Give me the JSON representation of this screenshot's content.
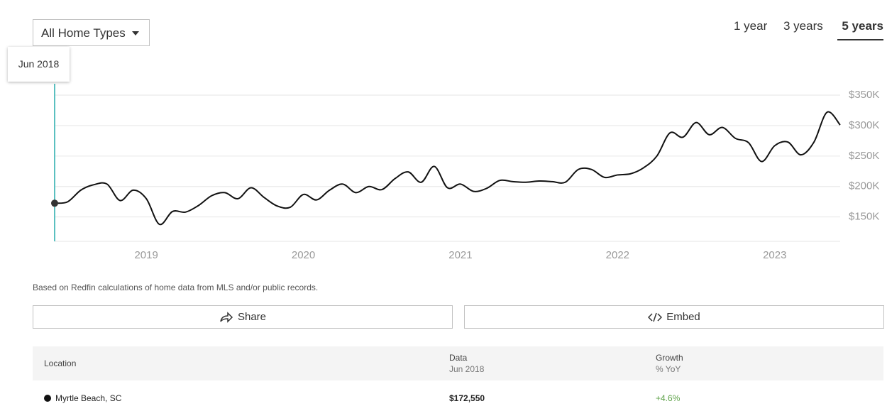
{
  "filter": {
    "label": "All Home Types"
  },
  "time_range": {
    "options": [
      "1 year",
      "3 years",
      "5 years"
    ],
    "selected": "5 years"
  },
  "tooltip": {
    "label": "Jun 2018"
  },
  "chart_data": {
    "type": "line",
    "color": "#111111",
    "grid": true,
    "x": [
      "2018-06",
      "2018-07",
      "2018-08",
      "2018-09",
      "2018-10",
      "2018-11",
      "2018-12",
      "2019-01",
      "2019-02",
      "2019-03",
      "2019-04",
      "2019-05",
      "2019-06",
      "2019-07",
      "2019-08",
      "2019-09",
      "2019-10",
      "2019-11",
      "2019-12",
      "2020-01",
      "2020-02",
      "2020-03",
      "2020-04",
      "2020-05",
      "2020-06",
      "2020-07",
      "2020-08",
      "2020-09",
      "2020-10",
      "2020-11",
      "2020-12",
      "2021-01",
      "2021-02",
      "2021-03",
      "2021-04",
      "2021-05",
      "2021-06",
      "2021-07",
      "2021-08",
      "2021-09",
      "2021-10",
      "2021-11",
      "2021-12",
      "2022-01",
      "2022-02",
      "2022-03",
      "2022-04",
      "2022-05",
      "2022-06",
      "2022-07",
      "2022-08",
      "2022-09",
      "2022-10",
      "2022-11",
      "2022-12",
      "2023-01",
      "2023-02",
      "2023-03",
      "2023-04",
      "2023-05",
      "2023-06"
    ],
    "values": [
      172550,
      175000,
      194000,
      203000,
      204000,
      177000,
      194000,
      180000,
      138000,
      159000,
      158000,
      169000,
      185000,
      190000,
      180000,
      198000,
      182000,
      168000,
      166000,
      187000,
      178000,
      194000,
      204000,
      190000,
      200000,
      195000,
      213000,
      224000,
      207000,
      233000,
      198000,
      204000,
      192000,
      197000,
      210000,
      208000,
      207000,
      209000,
      208000,
      207000,
      228000,
      228000,
      215000,
      219000,
      221000,
      231000,
      250000,
      288000,
      281000,
      305000,
      285000,
      297000,
      279000,
      272000,
      241000,
      267000,
      273000,
      252000,
      273000,
      322000,
      301000
    ],
    "xlim": [
      "2018-06",
      "2023-06"
    ],
    "xticks": [
      {
        "value": "2019-01",
        "label": "2019"
      },
      {
        "value": "2020-01",
        "label": "2020"
      },
      {
        "value": "2021-01",
        "label": "2021"
      },
      {
        "value": "2022-01",
        "label": "2022"
      },
      {
        "value": "2023-01",
        "label": "2023"
      }
    ],
    "ylim": [
      110000,
      350000
    ],
    "yticks": [
      {
        "value": 150000,
        "label": "$150K"
      },
      {
        "value": 200000,
        "label": "$200K"
      },
      {
        "value": 250000,
        "label": "$250K"
      },
      {
        "value": 300000,
        "label": "$300K"
      },
      {
        "value": 350000,
        "label": "$350K"
      }
    ]
  },
  "footnote": "Based on Redfin calculations of home data from MLS and/or public records.",
  "buttons": [
    "Share",
    "Embed"
  ],
  "table": {
    "columns": [
      {
        "title": "Location"
      },
      {
        "title": "Data",
        "subtitle": "Jun 2018"
      },
      {
        "title": "Growth",
        "subtitle": "% YoY"
      }
    ],
    "rows": [
      [
        "Myrtle Beach, SC",
        "$172,550",
        "+4.6%"
      ]
    ]
  }
}
